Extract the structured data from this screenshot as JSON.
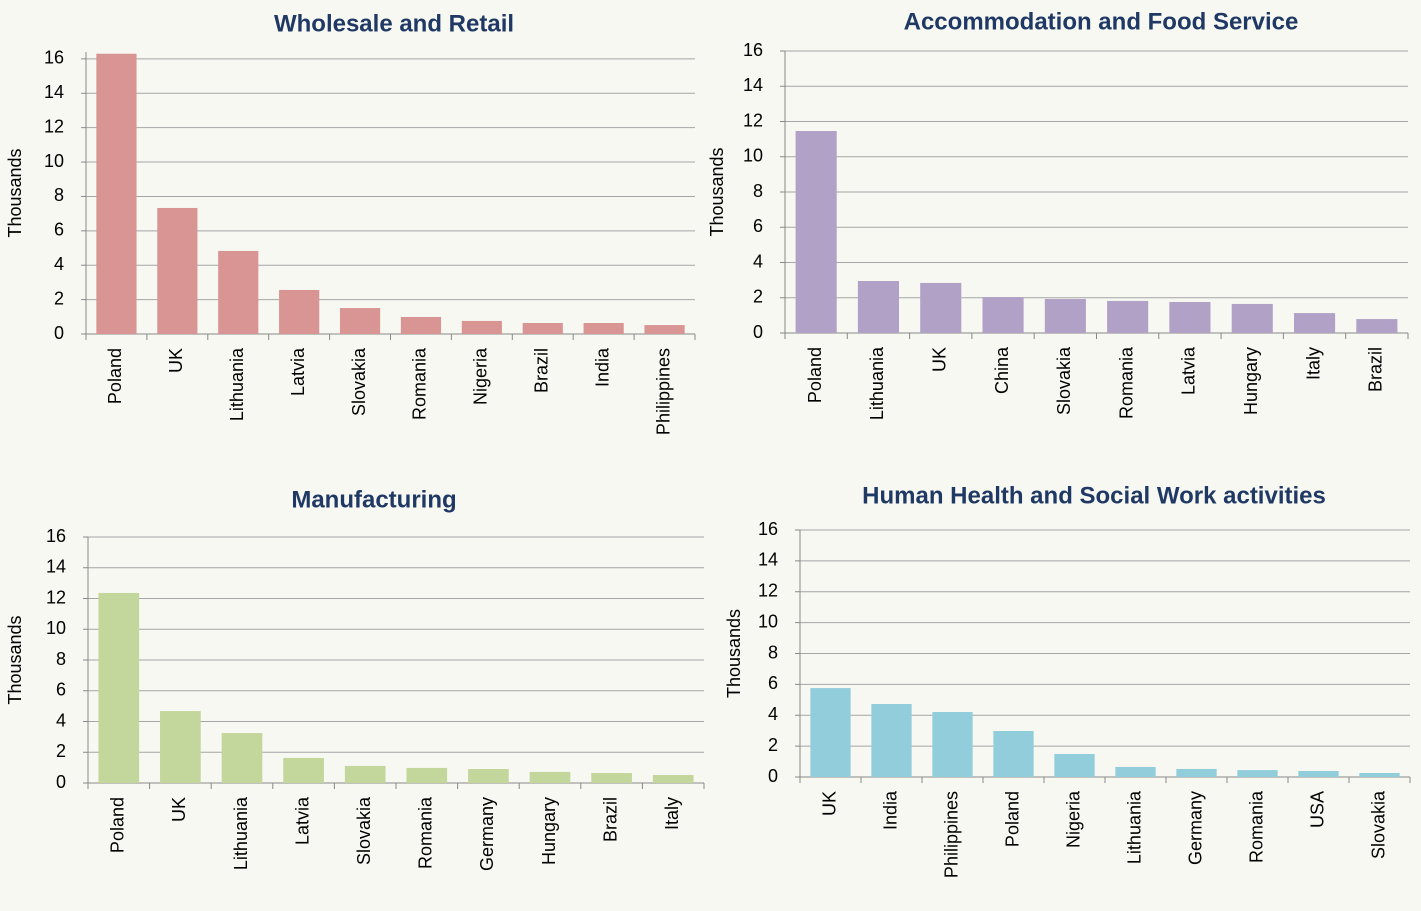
{
  "chart_data": [
    {
      "type": "bar",
      "title": "Wholesale and Retail",
      "y_label": "Thousands",
      "categories": [
        "Poland",
        "UK",
        "Lithuania",
        "Latvia",
        "Slovakia",
        "Romania",
        "Nigeria",
        "Brazil",
        "India",
        "Philippines"
      ],
      "values": [
        16.3,
        7.33,
        4.83,
        2.56,
        1.51,
        0.99,
        0.76,
        0.64,
        0.64,
        0.52
      ],
      "color": "#d99594",
      "ylim": [
        0,
        16.4
      ],
      "yticks": [
        0,
        2,
        4,
        6,
        8,
        10,
        12,
        14,
        16
      ],
      "grid": true
    },
    {
      "type": "bar",
      "title": "Accommodation and Food Service",
      "y_label": "Thousands",
      "categories": [
        "Poland",
        "Lithuania",
        "UK",
        "China",
        "Slovakia",
        "Romania",
        "Latvia",
        "Hungary",
        "Italy",
        "Brazil"
      ],
      "values": [
        11.46,
        2.95,
        2.84,
        2.04,
        1.93,
        1.82,
        1.76,
        1.65,
        1.13,
        0.79
      ],
      "color": "#b2a1c7",
      "ylim": [
        0,
        16
      ],
      "yticks": [
        0,
        2,
        4,
        6,
        8,
        10,
        12,
        14,
        16
      ],
      "grid": true
    },
    {
      "type": "bar",
      "title": "Manufacturing",
      "y_label": "Thousands",
      "categories": [
        "Poland",
        "UK",
        "Lithuania",
        "Latvia",
        "Slovakia",
        "Romania",
        "Germany",
        "Hungary",
        "Brazil",
        "Italy"
      ],
      "values": [
        12.36,
        4.68,
        3.25,
        1.63,
        1.11,
        0.98,
        0.91,
        0.72,
        0.65,
        0.52
      ],
      "color": "#c3d69b",
      "ylim": [
        0,
        16
      ],
      "yticks": [
        0,
        2,
        4,
        6,
        8,
        10,
        12,
        14,
        16
      ],
      "grid": true
    },
    {
      "type": "bar",
      "title": "Human Health and Social Work activities",
      "y_label": "Thousands",
      "categories": [
        "UK",
        "India",
        "Philippines",
        "Poland",
        "Nigeria",
        "Lithuania",
        "Germany",
        "Romania",
        "USA",
        "Slovakia"
      ],
      "values": [
        5.76,
        4.73,
        4.21,
        2.98,
        1.49,
        0.65,
        0.52,
        0.45,
        0.39,
        0.26
      ],
      "color": "#92cddc",
      "ylim": [
        0,
        16
      ],
      "yticks": [
        0,
        2,
        4,
        6,
        8,
        10,
        12,
        14,
        16
      ],
      "grid": true
    }
  ]
}
